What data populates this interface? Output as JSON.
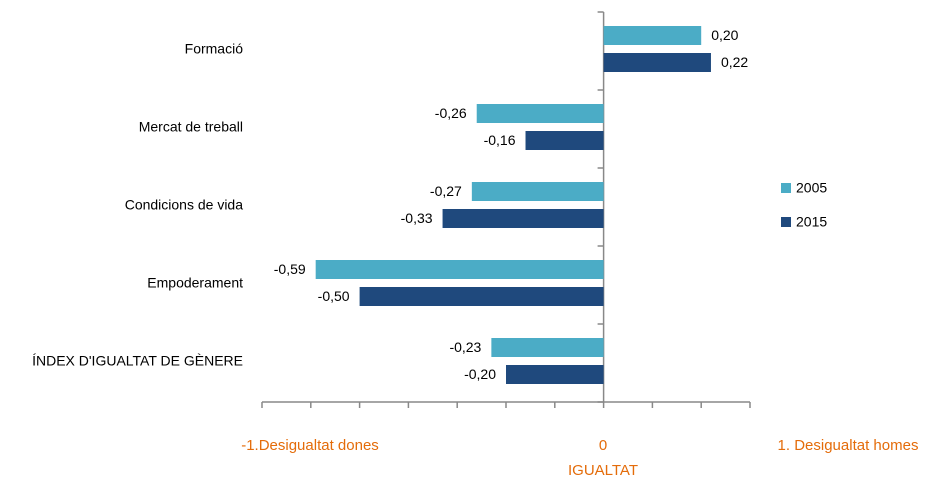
{
  "chart_data": {
    "type": "hbar",
    "categories": [
      "Formació",
      "Mercat de treball",
      "Condicions de vida",
      "Empoderament",
      "ÍNDEX D'IGUALTAT DE GÈNERE"
    ],
    "series": [
      {
        "name": "2005",
        "color": "#4bacc6",
        "values": [
          0.2,
          -0.26,
          -0.27,
          -0.59,
          -0.23
        ],
        "value_labels": [
          "0,20",
          "-0,26",
          "-0,27",
          "-0,59",
          "-0,23"
        ]
      },
      {
        "name": "2015",
        "color": "#1f497d",
        "values": [
          0.22,
          -0.16,
          -0.33,
          -0.5,
          -0.2
        ],
        "value_labels": [
          "0,22",
          "-0,16",
          "-0,33",
          "-0,50",
          "-0,20"
        ]
      }
    ],
    "xlim": [
      -0.7,
      0.3
    ],
    "xticks": [
      -0.7,
      -0.6,
      -0.5,
      -0.4,
      -0.3,
      -0.2,
      -0.1,
      0,
      0.1,
      0.2,
      0.3
    ],
    "x_annotations": [
      "-1.Desigualtat dones",
      "0",
      "1. Desigualtat homes"
    ],
    "x_axis_label": "IGUALTAT",
    "legend": "right"
  }
}
